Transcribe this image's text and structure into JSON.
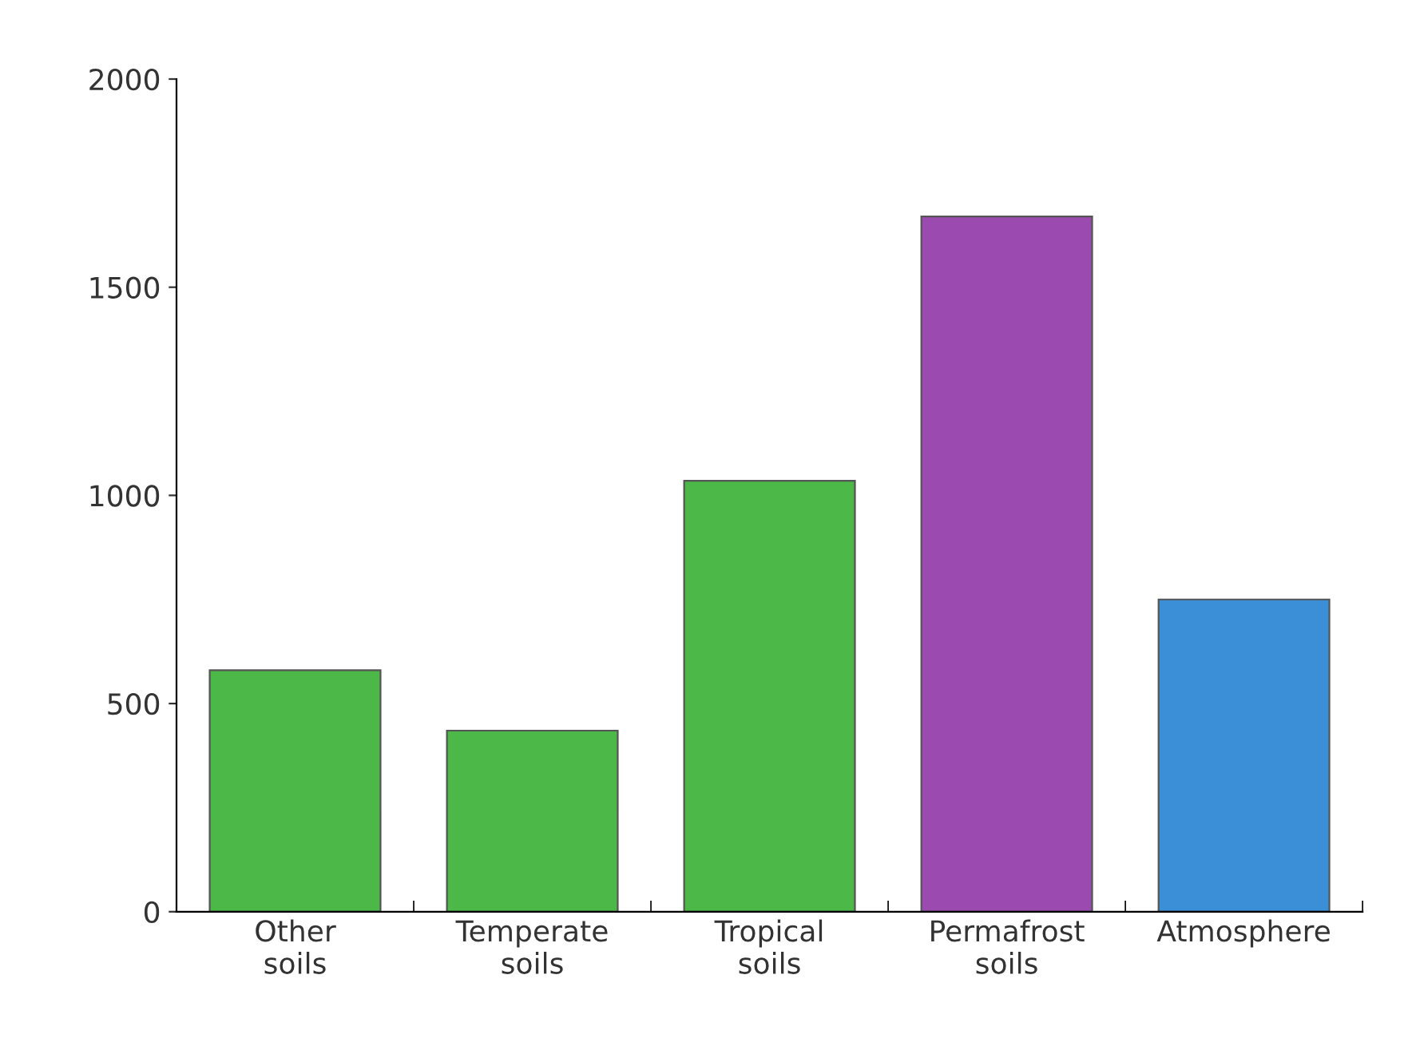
{
  "chart_data": {
    "type": "bar",
    "categories": [
      "Other\nsoils",
      "Temperate\nsoils",
      "Tropical\nsoils",
      "Permafrost\nsoils",
      "Atmosphere"
    ],
    "values": [
      580,
      435,
      1035,
      1670,
      750
    ],
    "colors": [
      "#4cb848",
      "#4cb848",
      "#4cb848",
      "#9b4bb0",
      "#3b8fd6"
    ],
    "ylim": [
      0,
      2000
    ],
    "yticks": [
      0,
      500,
      1000,
      1500,
      2000
    ],
    "grid": false,
    "legend": false
  }
}
